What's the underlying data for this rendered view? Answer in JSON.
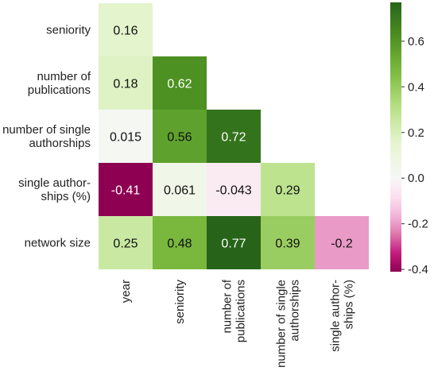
{
  "chart_data": {
    "type": "heatmap",
    "mask": "lower-triangle",
    "rows": [
      [
        "seniority"
      ],
      [
        "number of",
        "publications"
      ],
      [
        "number of single",
        "authorships"
      ],
      [
        "single author-",
        "ships (%)"
      ],
      [
        "network size"
      ]
    ],
    "columns": [
      [
        "year"
      ],
      [
        "seniority"
      ],
      [
        "number of",
        "publications"
      ],
      [
        "number of single",
        "authorships"
      ],
      [
        "single author-",
        "ships (%)"
      ]
    ],
    "values": [
      [
        0.16,
        null,
        null,
        null,
        null
      ],
      [
        0.18,
        0.62,
        null,
        null,
        null
      ],
      [
        0.015,
        0.56,
        0.72,
        null,
        null
      ],
      [
        -0.41,
        0.061,
        -0.043,
        0.29,
        null
      ],
      [
        0.25,
        0.48,
        0.77,
        0.39,
        -0.2
      ]
    ],
    "labels": [
      [
        "0.16",
        "",
        "",
        "",
        ""
      ],
      [
        "0.18",
        "0.62",
        "",
        "",
        ""
      ],
      [
        "0.015",
        "0.56",
        "0.72",
        "",
        ""
      ],
      [
        "-0.41",
        "0.061",
        "-0.043",
        "0.29",
        ""
      ],
      [
        "0.25",
        "0.48",
        "0.77",
        "0.39",
        "-0.2"
      ]
    ],
    "colorbar": {
      "min": -0.41,
      "max": 0.77,
      "center": 0,
      "ticks": [
        -0.4,
        -0.2,
        0.0,
        0.2,
        0.4,
        0.6
      ],
      "tick_labels": [
        "-0.4",
        "-0.2",
        "0.0",
        "0.2",
        "0.4",
        "0.6"
      ],
      "colormap": "PiYG",
      "negative_color": "#8e0152",
      "center_color": "#f7f7f7",
      "positive_color": "#276419"
    }
  }
}
